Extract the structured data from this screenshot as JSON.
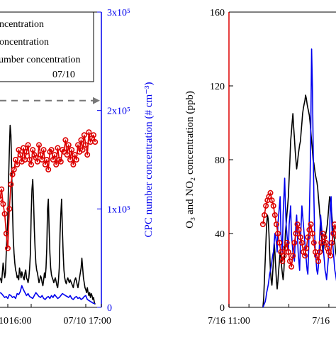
{
  "chart_data": [
    {
      "type": "line",
      "x_tick_labels": [
        "16:00",
        "07/10 17:00"
      ],
      "x_tick_label_fragment_left": "10",
      "y_right_label": "CPC number concentration (# cm⁻³)",
      "y_right_ticks": [
        "0",
        "1x10⁵",
        "2x10⁵",
        "3x10⁵"
      ],
      "y_right_lim": [
        0,
        300000
      ],
      "legend": {
        "placement": "top-left",
        "entries": [
          "ncentration",
          "oncentration",
          "umber concentration"
        ],
        "date_text": "07/10"
      },
      "reference_line": {
        "style": "dashed",
        "y": 210000
      },
      "series": [
        {
          "color": "#000000",
          "marker": "none",
          "x": [
            0,
            1,
            2,
            3,
            4,
            5,
            6,
            7,
            8,
            9,
            10,
            11,
            12,
            13,
            14,
            15,
            16,
            17,
            18,
            19,
            20,
            21,
            22,
            23,
            24,
            25,
            26,
            27,
            28,
            29,
            30,
            31,
            32,
            33,
            34,
            35,
            36,
            37,
            38,
            39,
            40,
            41,
            42,
            43,
            44,
            45,
            46,
            47,
            48,
            49,
            50,
            51,
            52,
            53,
            54,
            55,
            56,
            57,
            58,
            59,
            60,
            61,
            62,
            63,
            64,
            65,
            66,
            67,
            68,
            69,
            70,
            71,
            72,
            73,
            74,
            75,
            76,
            77,
            78,
            79,
            80,
            81,
            82,
            83,
            84,
            85,
            86,
            87,
            88,
            89,
            90,
            91,
            92,
            93,
            94,
            95,
            96,
            97,
            98,
            99,
            100,
            101,
            102,
            103,
            104,
            105,
            106,
            107,
            108,
            109,
            110,
            111,
            112,
            113,
            114,
            115,
            116,
            117,
            118,
            119,
            120,
            121,
            122
          ],
          "y": [
            30000,
            28000,
            25000,
            35000,
            45000,
            38000,
            30000,
            35000,
            55000,
            75000,
            90000,
            130000,
            160000,
            185000,
            175000,
            140000,
            100000,
            70000,
            55000,
            45000,
            38000,
            35000,
            30000,
            32000,
            28000,
            40000,
            35000,
            30000,
            36000,
            33000,
            30000,
            28000,
            35000,
            38000,
            30000,
            28000,
            25000,
            30000,
            40000,
            55000,
            95000,
            120000,
            130000,
            110000,
            80000,
            60000,
            45000,
            38000,
            35000,
            30000,
            25000,
            28000,
            32000,
            30000,
            25000,
            22000,
            28000,
            35000,
            30000,
            40000,
            60000,
            100000,
            110000,
            80000,
            55000,
            40000,
            33000,
            30000,
            28000,
            25000,
            28000,
            30000,
            26000,
            22000,
            20000,
            28000,
            40000,
            75000,
            95000,
            110000,
            80000,
            55000,
            38000,
            30000,
            26000,
            24000,
            28000,
            30000,
            27000,
            25000,
            28000,
            26000,
            24000,
            22000,
            20000,
            25000,
            28000,
            30000,
            27000,
            23000,
            20000,
            25000,
            30000,
            35000,
            40000,
            50000,
            40000,
            30000,
            25000,
            20000,
            18000,
            15000,
            20000,
            15000,
            12000,
            15000,
            10000,
            14000,
            12000,
            8000,
            10000,
            5000,
            3000
          ]
        },
        {
          "color": "#0000ee",
          "marker": "none",
          "x": [
            0,
            2,
            4,
            6,
            8,
            10,
            12,
            14,
            16,
            18,
            20,
            22,
            24,
            26,
            28,
            30,
            32,
            34,
            36,
            38,
            40,
            42,
            44,
            46,
            48,
            50,
            52,
            54,
            56,
            58,
            60,
            62,
            64,
            66,
            68,
            70,
            72,
            74,
            76,
            78,
            80,
            82,
            84,
            86,
            88,
            90,
            92,
            94,
            96,
            98,
            100,
            102,
            104,
            106,
            108,
            110,
            112,
            114,
            116,
            118,
            120,
            122
          ],
          "y": [
            15000,
            14000,
            12000,
            10000,
            11000,
            9000,
            13000,
            12000,
            10000,
            11000,
            9000,
            14000,
            13000,
            16000,
            22000,
            18000,
            15000,
            12000,
            14000,
            11000,
            10000,
            9000,
            12000,
            15000,
            13000,
            11000,
            10000,
            12000,
            9000,
            8000,
            10000,
            11000,
            9000,
            12000,
            10000,
            13000,
            11000,
            9000,
            10000,
            12000,
            14000,
            13000,
            12000,
            11000,
            10000,
            12000,
            9000,
            8000,
            10000,
            11000,
            9000,
            10000,
            8000,
            9000,
            11000,
            12000,
            8000,
            7000,
            6000,
            5000,
            4000,
            4000
          ]
        },
        {
          "color": "#dd0000",
          "marker": "circle",
          "x": [
            0,
            2,
            4,
            6,
            8,
            10,
            12,
            14,
            16,
            18,
            20,
            22,
            24,
            26,
            28,
            30,
            32,
            34,
            36,
            38,
            40,
            42,
            44,
            46,
            48,
            50,
            52,
            54,
            56,
            58,
            60,
            62,
            64,
            66,
            68,
            70,
            72,
            74,
            76,
            78,
            80,
            82,
            84,
            86,
            88,
            90,
            92,
            94,
            96,
            98,
            100,
            102,
            104,
            106,
            108,
            110,
            112,
            114,
            116,
            118,
            120,
            122
          ],
          "y": [
            110000,
            120000,
            105000,
            95000,
            75000,
            60000,
            100000,
            125000,
            135000,
            140000,
            150000,
            145000,
            160000,
            155000,
            148000,
            162000,
            150000,
            158000,
            165000,
            150000,
            145000,
            160000,
            155000,
            152000,
            148000,
            165000,
            155000,
            150000,
            160000,
            145000,
            150000,
            140000,
            158000,
            160000,
            150000,
            155000,
            145000,
            162000,
            150000,
            148000,
            160000,
            158000,
            170000,
            155000,
            165000,
            150000,
            160000,
            145000,
            155000,
            150000,
            165000,
            158000,
            170000,
            160000,
            175000,
            165000,
            155000,
            178000,
            168000,
            172000,
            175000,
            168000
          ]
        }
      ]
    },
    {
      "type": "line",
      "ylabel": "O₃ and NO₂ concentration (ppb)",
      "y_ticks": [
        "0",
        "40",
        "80",
        "120",
        "160"
      ],
      "ylim": [
        0,
        160
      ],
      "x_tick_labels": [
        "7/16 11:00",
        "7/16"
      ],
      "series": [
        {
          "color": "#000000",
          "marker": "none",
          "x": [
            0,
            1,
            2,
            3,
            4,
            5,
            6,
            7,
            8,
            9,
            10,
            11,
            12,
            13,
            14,
            15,
            16,
            17,
            18,
            19,
            20,
            21,
            22,
            23,
            24,
            25,
            26,
            27,
            28,
            29,
            30,
            31,
            32,
            33,
            34,
            35,
            36,
            37,
            38,
            39,
            40,
            41,
            42,
            43,
            44,
            45,
            46,
            47,
            48,
            49,
            50,
            51,
            52,
            53,
            54,
            55,
            56,
            57,
            58,
            59,
            60,
            61,
            62,
            63,
            64,
            65,
            66,
            67,
            68,
            69,
            70,
            71,
            72,
            73,
            74,
            75,
            76,
            77,
            78,
            79,
            80,
            81,
            82,
            83,
            84,
            85,
            86,
            87,
            88,
            89,
            90,
            91,
            92,
            93,
            94,
            95,
            96,
            97,
            98,
            99,
            100
          ],
          "y": [
            0,
            5,
            15,
            25,
            35,
            45,
            50,
            48,
            40,
            30,
            20,
            15,
            12,
            18,
            25,
            35,
            30,
            22,
            15,
            10,
            14,
            20,
            25,
            30,
            28,
            22,
            18,
            15,
            20,
            30,
            40,
            45,
            50,
            55,
            60,
            70,
            80,
            90,
            95,
            100,
            105,
            98,
            92,
            85,
            80,
            75,
            78,
            82,
            85,
            88,
            90,
            95,
            100,
            105,
            108,
            110,
            112,
            115,
            113,
            110,
            108,
            106,
            104,
            100,
            95,
            90,
            85,
            80,
            78,
            75,
            72,
            70,
            68,
            65,
            60,
            55,
            50,
            45,
            40,
            35,
            30,
            32,
            35,
            38,
            40,
            42,
            45,
            50,
            55,
            60,
            58,
            55,
            50,
            45,
            40,
            38,
            35,
            30,
            28,
            25,
            20
          ]
        },
        {
          "color": "#0000ee",
          "marker": "none",
          "x": [
            0,
            1,
            2,
            3,
            4,
            5,
            6,
            7,
            8,
            9,
            10,
            11,
            12,
            13,
            14,
            15,
            16,
            17,
            18,
            19,
            20,
            21,
            22,
            23,
            24,
            25,
            26,
            27,
            28,
            29,
            30,
            31,
            32,
            33,
            34,
            35,
            36,
            37,
            38,
            39,
            40,
            41,
            42,
            43,
            44,
            45,
            46,
            47,
            48,
            49,
            50,
            51,
            52,
            53,
            54,
            55,
            56,
            57,
            58,
            59,
            60,
            61,
            62,
            63,
            64,
            65,
            66,
            67,
            68,
            69,
            70,
            71,
            72,
            73,
            74,
            75,
            76,
            77,
            78,
            79,
            80,
            81,
            82,
            83,
            84,
            85,
            86,
            87,
            88,
            89,
            90,
            91,
            92,
            93,
            94,
            95,
            96,
            97,
            98,
            99,
            100
          ],
          "y": [
            0,
            1,
            2,
            3,
            5,
            8,
            10,
            12,
            15,
            18,
            20,
            22,
            25,
            28,
            30,
            35,
            40,
            38,
            35,
            30,
            45,
            50,
            55,
            60,
            40,
            35,
            30,
            50,
            60,
            70,
            55,
            45,
            40,
            35,
            30,
            45,
            50,
            55,
            40,
            35,
            30,
            28,
            25,
            35,
            45,
            50,
            40,
            30,
            25,
            20,
            35,
            45,
            55,
            50,
            45,
            40,
            35,
            30,
            25,
            20,
            18,
            30,
            50,
            70,
            100,
            140,
            120,
            90,
            60,
            40,
            30,
            25,
            20,
            18,
            22,
            30,
            40,
            50,
            45,
            40,
            35,
            30,
            25,
            20,
            18,
            15,
            20,
            25,
            30,
            40,
            55,
            60,
            45,
            35,
            30,
            25,
            20,
            18,
            15,
            12,
            10
          ]
        },
        {
          "color": "#dd0000",
          "marker": "circle",
          "x": [
            0,
            2,
            4,
            6,
            8,
            10,
            12,
            14,
            16,
            18,
            20,
            22,
            24,
            26,
            28,
            30,
            32,
            34,
            36,
            38,
            40,
            42,
            44,
            46,
            48,
            50,
            52,
            54,
            56,
            58,
            60,
            62,
            64,
            66,
            68,
            70,
            72,
            74,
            76,
            78,
            80,
            82,
            84,
            86,
            88,
            90,
            92,
            94,
            96,
            98,
            100
          ],
          "y": [
            45,
            50,
            55,
            58,
            60,
            62,
            58,
            55,
            50,
            45,
            40,
            35,
            30,
            25,
            28,
            32,
            35,
            30,
            25,
            22,
            28,
            35,
            40,
            45,
            42,
            38,
            35,
            30,
            28,
            32,
            38,
            42,
            45,
            40,
            35,
            30,
            28,
            25,
            30,
            35,
            40,
            38,
            35,
            32,
            30,
            28,
            35,
            40,
            45,
            42,
            38
          ]
        }
      ]
    }
  ]
}
